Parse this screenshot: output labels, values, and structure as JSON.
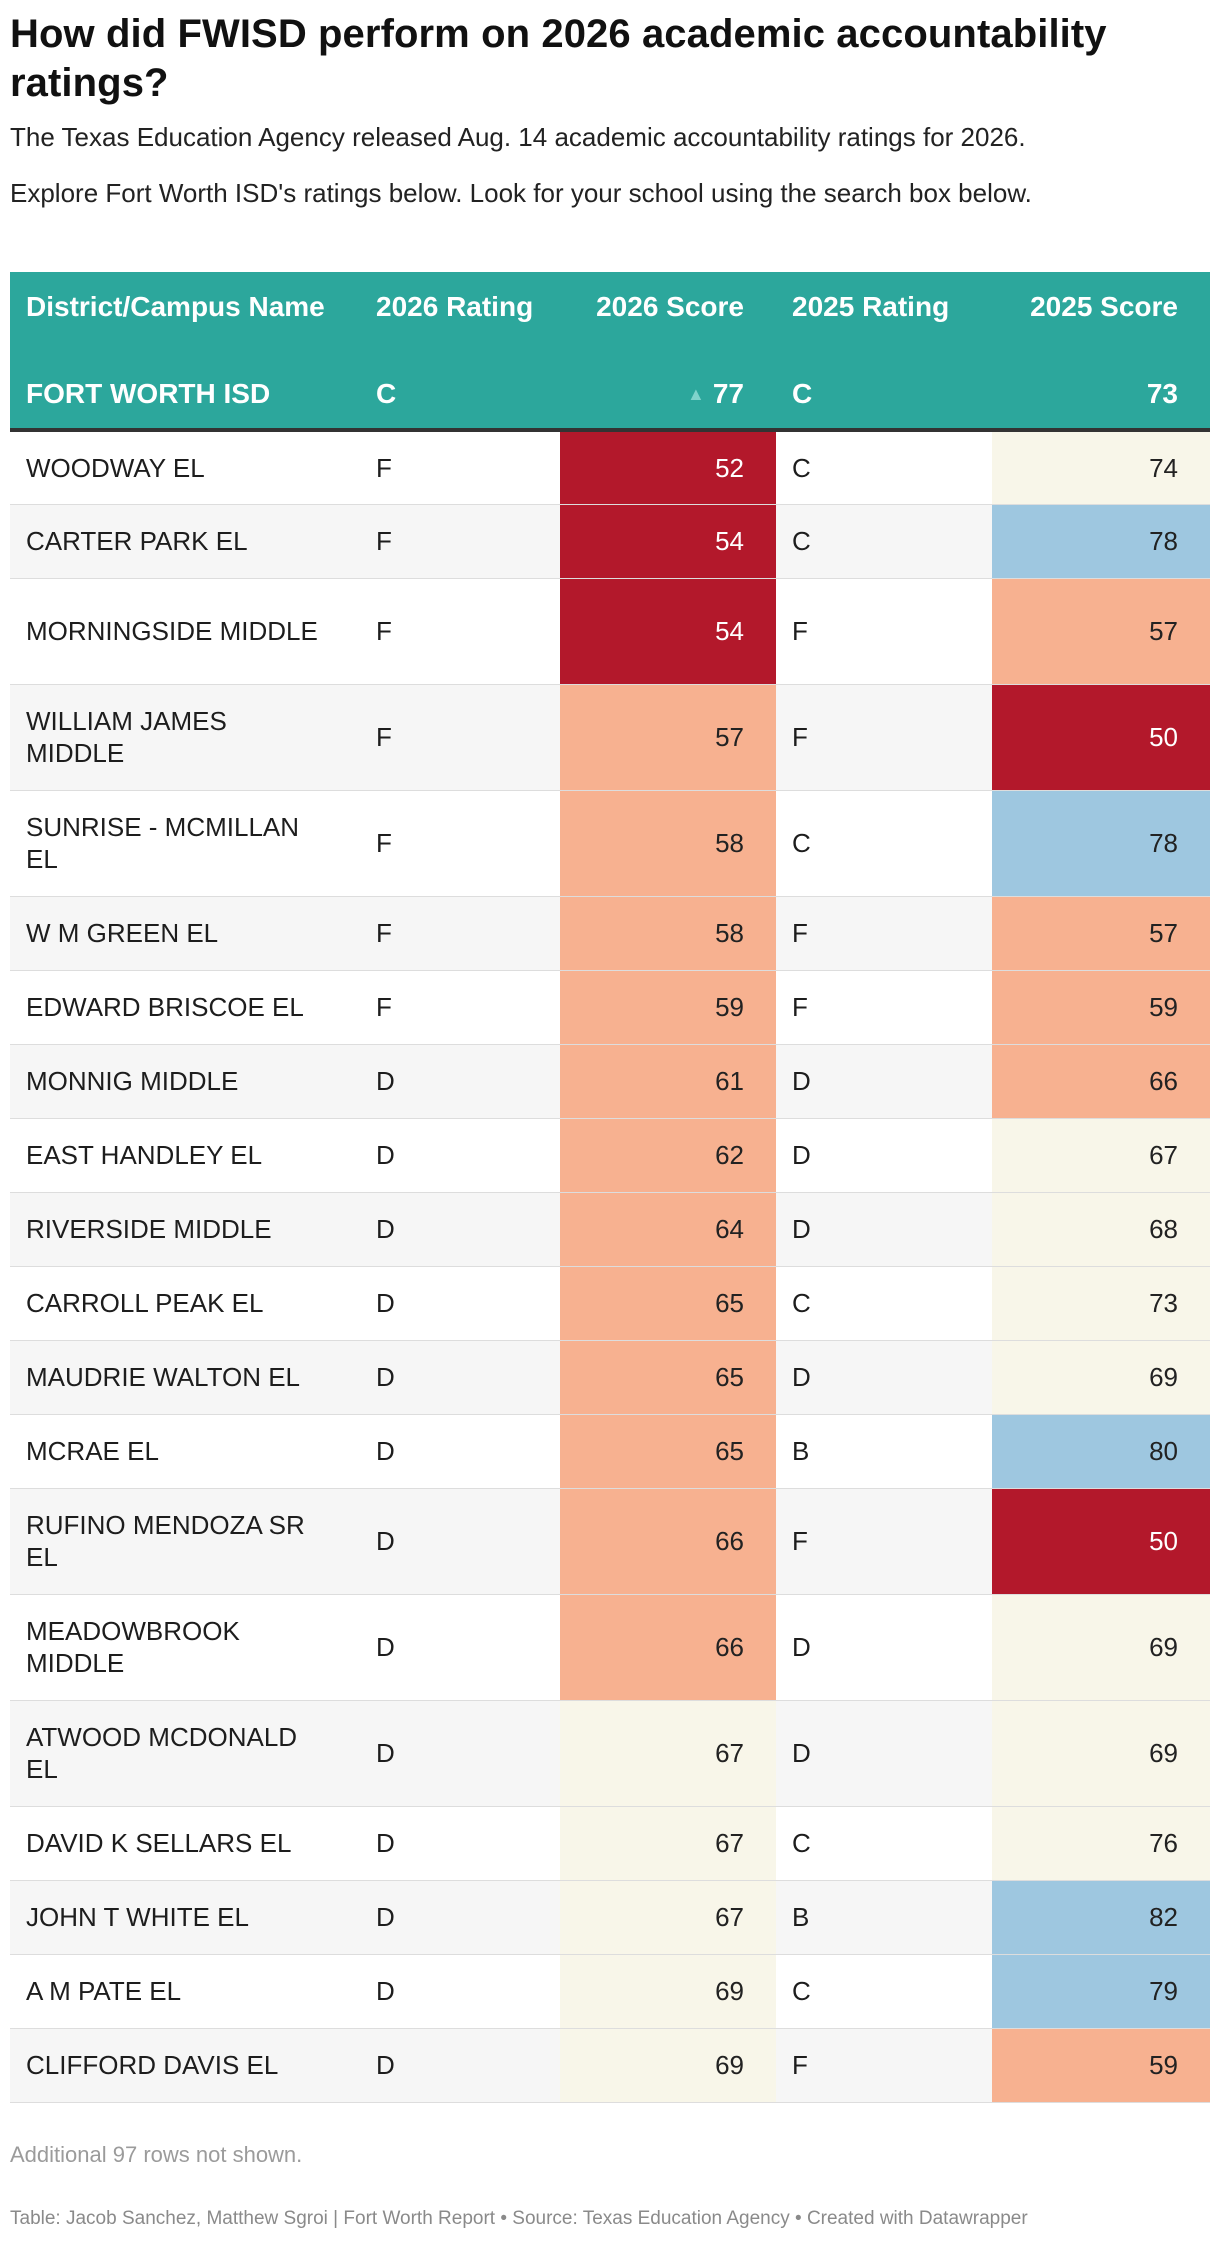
{
  "title": "How did FWISD perform on 2026 academic accountability ratings?",
  "description": [
    "The Texas Education Agency released Aug. 14 academic accountability ratings for 2026.",
    "Explore Fort Worth ISD's ratings below. Look for your school using the search box below."
  ],
  "colors": {
    "header": "#2ca79c",
    "scale": {
      "dark_red": "#b3182b",
      "salmon": "#f7b190",
      "cream": "#f8f6e9",
      "light_blue": "#9ec7e0",
      "mid_blue": "#6ea9d2"
    }
  },
  "chart_data": {
    "type": "table",
    "columns": [
      "District/Campus Name",
      "2026 Rating",
      "2026 Score",
      "2025 Rating",
      "2025 Score"
    ],
    "district": {
      "name": "FORT WORTH ISD",
      "rating_2026": "C",
      "score_2026": "77",
      "score_2026_trend": "up",
      "rating_2025": "C",
      "score_2025": "73"
    },
    "rows": [
      {
        "name": "WOODWAY EL",
        "r26": "F",
        "s26": "52",
        "r25": "C",
        "s25": "74"
      },
      {
        "name": "CARTER PARK EL",
        "r26": "F",
        "s26": "54",
        "r25": "C",
        "s25": "78"
      },
      {
        "name": "MORNINGSIDE MIDDLE",
        "r26": "F",
        "s26": "54",
        "r25": "F",
        "s25": "57"
      },
      {
        "name": "WILLIAM JAMES MIDDLE",
        "r26": "F",
        "s26": "57",
        "r25": "F",
        "s25": "50"
      },
      {
        "name": "SUNRISE - MCMILLAN EL",
        "r26": "F",
        "s26": "58",
        "r25": "C",
        "s25": "78"
      },
      {
        "name": "W M GREEN EL",
        "r26": "F",
        "s26": "58",
        "r25": "F",
        "s25": "57"
      },
      {
        "name": "EDWARD BRISCOE EL",
        "r26": "F",
        "s26": "59",
        "r25": "F",
        "s25": "59"
      },
      {
        "name": "MONNIG MIDDLE",
        "r26": "D",
        "s26": "61",
        "r25": "D",
        "s25": "66"
      },
      {
        "name": "EAST HANDLEY EL",
        "r26": "D",
        "s26": "62",
        "r25": "D",
        "s25": "67"
      },
      {
        "name": "RIVERSIDE MIDDLE",
        "r26": "D",
        "s26": "64",
        "r25": "D",
        "s25": "68"
      },
      {
        "name": "CARROLL PEAK EL",
        "r26": "D",
        "s26": "65",
        "r25": "C",
        "s25": "73"
      },
      {
        "name": "MAUDRIE WALTON EL",
        "r26": "D",
        "s26": "65",
        "r25": "D",
        "s25": "69"
      },
      {
        "name": "MCRAE EL",
        "r26": "D",
        "s26": "65",
        "r25": "B",
        "s25": "80"
      },
      {
        "name": "RUFINO MENDOZA SR EL",
        "r26": "D",
        "s26": "66",
        "r25": "F",
        "s25": "50"
      },
      {
        "name": "MEADOWBROOK MIDDLE",
        "r26": "D",
        "s26": "66",
        "r25": "D",
        "s25": "69"
      },
      {
        "name": "ATWOOD MCDONALD EL",
        "r26": "D",
        "s26": "67",
        "r25": "D",
        "s25": "69"
      },
      {
        "name": "DAVID K SELLARS EL",
        "r26": "D",
        "s26": "67",
        "r25": "C",
        "s25": "76"
      },
      {
        "name": "JOHN T WHITE EL",
        "r26": "D",
        "s26": "67",
        "r25": "B",
        "s25": "82"
      },
      {
        "name": "A M PATE EL",
        "r26": "D",
        "s26": "69",
        "r25": "C",
        "s25": "79"
      },
      {
        "name": "CLIFFORD DAVIS EL",
        "r26": "D",
        "s26": "69",
        "r25": "F",
        "s25": "59"
      }
    ]
  },
  "note": "Additional 97 rows not shown.",
  "footer": "Table: Jacob Sanchez, Matthew Sgroi | Fort Worth Report • Source: Texas Education Agency • Created with Datawrapper"
}
